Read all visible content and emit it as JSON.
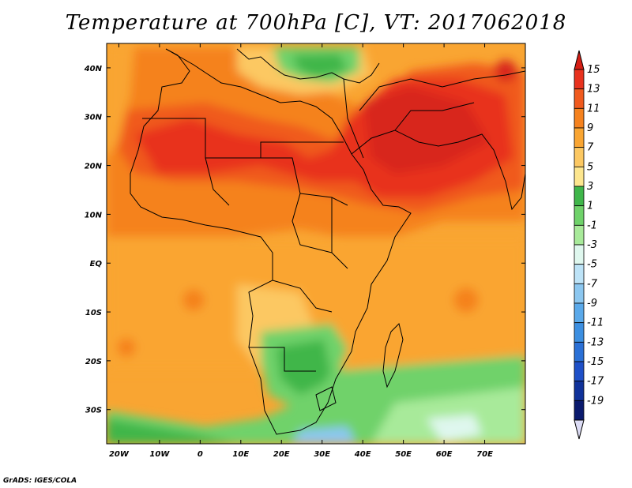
{
  "title": "Temperature at 700hPa [C], VT: 2017062018",
  "credit": "GrADS: IGES/COLA",
  "map": {
    "projection": "lat-lon",
    "lon_range": [
      -23,
      80
    ],
    "lat_range": [
      -37,
      45
    ],
    "lon_ticks": [
      {
        "value": -20,
        "label": "20W"
      },
      {
        "value": -10,
        "label": "10W"
      },
      {
        "value": 0,
        "label": "0"
      },
      {
        "value": 10,
        "label": "10E"
      },
      {
        "value": 20,
        "label": "20E"
      },
      {
        "value": 30,
        "label": "30E"
      },
      {
        "value": 40,
        "label": "40E"
      },
      {
        "value": 50,
        "label": "50E"
      },
      {
        "value": 60,
        "label": "60E"
      },
      {
        "value": 70,
        "label": "70E"
      }
    ],
    "lat_ticks": [
      {
        "value": 40,
        "label": "40N"
      },
      {
        "value": 30,
        "label": "30N"
      },
      {
        "value": 20,
        "label": "20N"
      },
      {
        "value": 10,
        "label": "10N"
      },
      {
        "value": 0,
        "label": "EQ"
      },
      {
        "value": -10,
        "label": "10S"
      },
      {
        "value": -20,
        "label": "20S"
      },
      {
        "value": -30,
        "label": "30S"
      }
    ]
  },
  "legend": {
    "labels": [
      "15",
      "13",
      "11",
      "9",
      "7",
      "5",
      "3",
      "1",
      "-1",
      "-3",
      "-5",
      "-7",
      "-9",
      "-11",
      "-13",
      "-15",
      "-17",
      "-19"
    ],
    "colors": [
      "#e8321e",
      "#f05a1e",
      "#f5821e",
      "#f9a532",
      "#fcc862",
      "#fde68e",
      "#3fb64a",
      "#6fd26a",
      "#a8ea9a",
      "#dff7ee",
      "#bde3f7",
      "#8cc7f0",
      "#5aa9ea",
      "#3c8fe1",
      "#2a70d6",
      "#1e50c8",
      "#10329a",
      "#0a1a6e"
    ],
    "top_arrow_color": "#d61e14",
    "bottom_arrow_color": "#dcdcf5"
  }
}
